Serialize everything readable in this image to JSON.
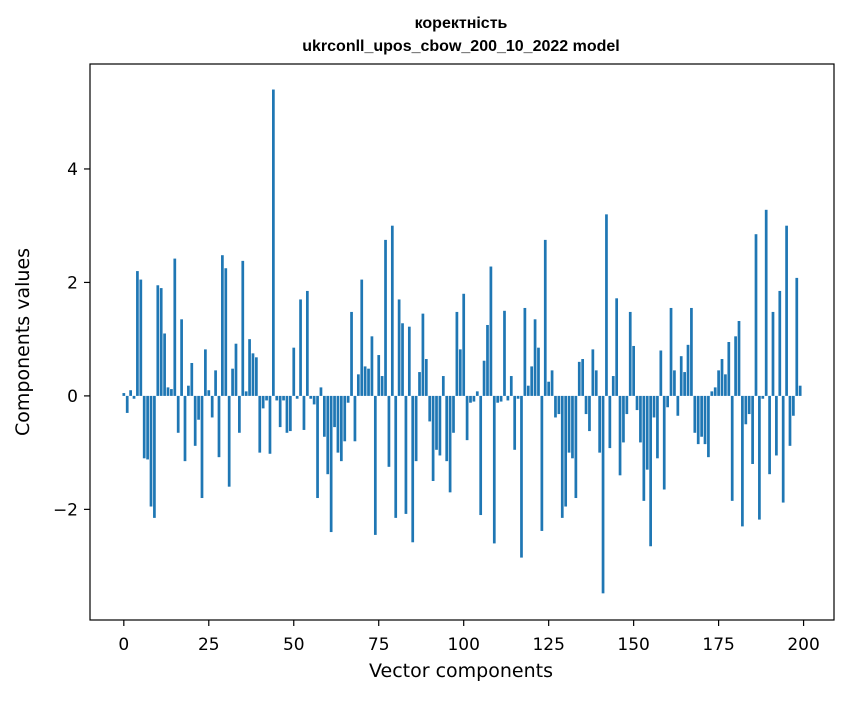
{
  "chart_data": {
    "type": "bar",
    "title": "коректність",
    "subtitle": "ukrconll_upos_cbow_200_10_2022 model",
    "xlabel": "Vector components",
    "ylabel": "Components values",
    "xlim": [
      -9.95,
      208.95
    ],
    "ylim": [
      -3.95,
      5.85
    ],
    "xticks": [
      0,
      25,
      50,
      75,
      100,
      125,
      150,
      175,
      200
    ],
    "yticks": [
      -2,
      0,
      2,
      4
    ],
    "ytick_labels": [
      "−2",
      "0",
      "2",
      "4"
    ],
    "grid": false,
    "legend": "none",
    "bar_color": "#1f77b4",
    "x": [
      0,
      1,
      2,
      3,
      4,
      5,
      6,
      7,
      8,
      9,
      10,
      11,
      12,
      13,
      14,
      15,
      16,
      17,
      18,
      19,
      20,
      21,
      22,
      23,
      24,
      25,
      26,
      27,
      28,
      29,
      30,
      31,
      32,
      33,
      34,
      35,
      36,
      37,
      38,
      39,
      40,
      41,
      42,
      43,
      44,
      45,
      46,
      47,
      48,
      49,
      50,
      51,
      52,
      53,
      54,
      55,
      56,
      57,
      58,
      59,
      60,
      61,
      62,
      63,
      64,
      65,
      66,
      67,
      68,
      69,
      70,
      71,
      72,
      73,
      74,
      75,
      76,
      77,
      78,
      79,
      80,
      81,
      82,
      83,
      84,
      85,
      86,
      87,
      88,
      89,
      90,
      91,
      92,
      93,
      94,
      95,
      96,
      97,
      98,
      99,
      100,
      101,
      102,
      103,
      104,
      105,
      106,
      107,
      108,
      109,
      110,
      111,
      112,
      113,
      114,
      115,
      116,
      117,
      118,
      119,
      120,
      121,
      122,
      123,
      124,
      125,
      126,
      127,
      128,
      129,
      130,
      131,
      132,
      133,
      134,
      135,
      136,
      137,
      138,
      139,
      140,
      141,
      142,
      143,
      144,
      145,
      146,
      147,
      148,
      149,
      150,
      151,
      152,
      153,
      154,
      155,
      156,
      157,
      158,
      159,
      160,
      161,
      162,
      163,
      164,
      165,
      166,
      167,
      168,
      169,
      170,
      171,
      172,
      173,
      174,
      175,
      176,
      177,
      178,
      179,
      180,
      181,
      182,
      183,
      184,
      185,
      186,
      187,
      188,
      189,
      190,
      191,
      192,
      193,
      194,
      195,
      196,
      197,
      198,
      199
    ],
    "values": [
      0.05,
      -0.3,
      0.1,
      -0.05,
      2.2,
      2.05,
      -1.1,
      -1.12,
      -1.95,
      -2.15,
      1.95,
      1.9,
      1.1,
      0.15,
      0.12,
      2.42,
      -0.65,
      1.35,
      -1.15,
      0.18,
      0.58,
      -0.88,
      -0.42,
      -1.8,
      0.82,
      0.1,
      -0.38,
      0.45,
      -1.08,
      2.48,
      2.25,
      -1.6,
      0.48,
      0.92,
      -0.65,
      2.38,
      0.08,
      1.0,
      0.75,
      0.68,
      -1.0,
      -0.22,
      -0.08,
      -1.02,
      5.4,
      -0.08,
      -0.55,
      -0.08,
      -0.65,
      -0.62,
      0.85,
      -0.05,
      1.7,
      -0.6,
      1.85,
      -0.05,
      -0.15,
      -1.8,
      0.15,
      -0.72,
      -1.38,
      -2.4,
      -0.55,
      -1.0,
      -1.15,
      -0.8,
      -0.12,
      1.48,
      -0.8,
      0.38,
      2.05,
      0.52,
      0.48,
      1.05,
      -2.45,
      0.72,
      0.35,
      2.75,
      -1.25,
      3.0,
      -2.15,
      1.7,
      1.28,
      -2.08,
      1.22,
      -2.58,
      -1.15,
      0.42,
      1.45,
      0.65,
      -0.45,
      -1.5,
      -0.95,
      -1.05,
      0.35,
      -1.15,
      -1.7,
      -0.65,
      1.48,
      0.82,
      1.8,
      -0.78,
      -0.12,
      -0.1,
      0.08,
      -2.1,
      0.62,
      1.25,
      2.28,
      -2.6,
      -0.12,
      -0.1,
      1.5,
      -0.08,
      0.35,
      -0.95,
      -0.05,
      -2.85,
      1.55,
      0.18,
      0.52,
      1.35,
      0.85,
      -2.38,
      2.75,
      0.25,
      0.45,
      -0.38,
      -0.32,
      -2.15,
      -1.95,
      -1.0,
      -1.1,
      -1.8,
      0.6,
      0.65,
      -0.32,
      -0.62,
      0.82,
      0.45,
      -1.0,
      -3.48,
      3.2,
      -0.92,
      0.35,
      1.72,
      -1.4,
      -0.82,
      -0.32,
      1.48,
      0.88,
      -0.25,
      -0.82,
      -1.85,
      -1.3,
      -2.65,
      -0.38,
      -1.1,
      0.8,
      -1.65,
      -0.2,
      1.55,
      0.45,
      -0.35,
      0.7,
      0.42,
      0.9,
      1.55,
      -0.65,
      -0.85,
      -0.72,
      -0.85,
      -1.08,
      0.08,
      0.15,
      0.45,
      0.65,
      0.38,
      0.95,
      -1.85,
      1.05,
      1.32,
      -2.3,
      -0.5,
      -0.32,
      -1.2,
      2.85,
      -2.18,
      -0.05,
      3.28,
      -1.38,
      1.48,
      -1.05,
      1.85,
      -1.88,
      3.0,
      -0.88,
      -0.35,
      2.08,
      0.18
    ]
  }
}
